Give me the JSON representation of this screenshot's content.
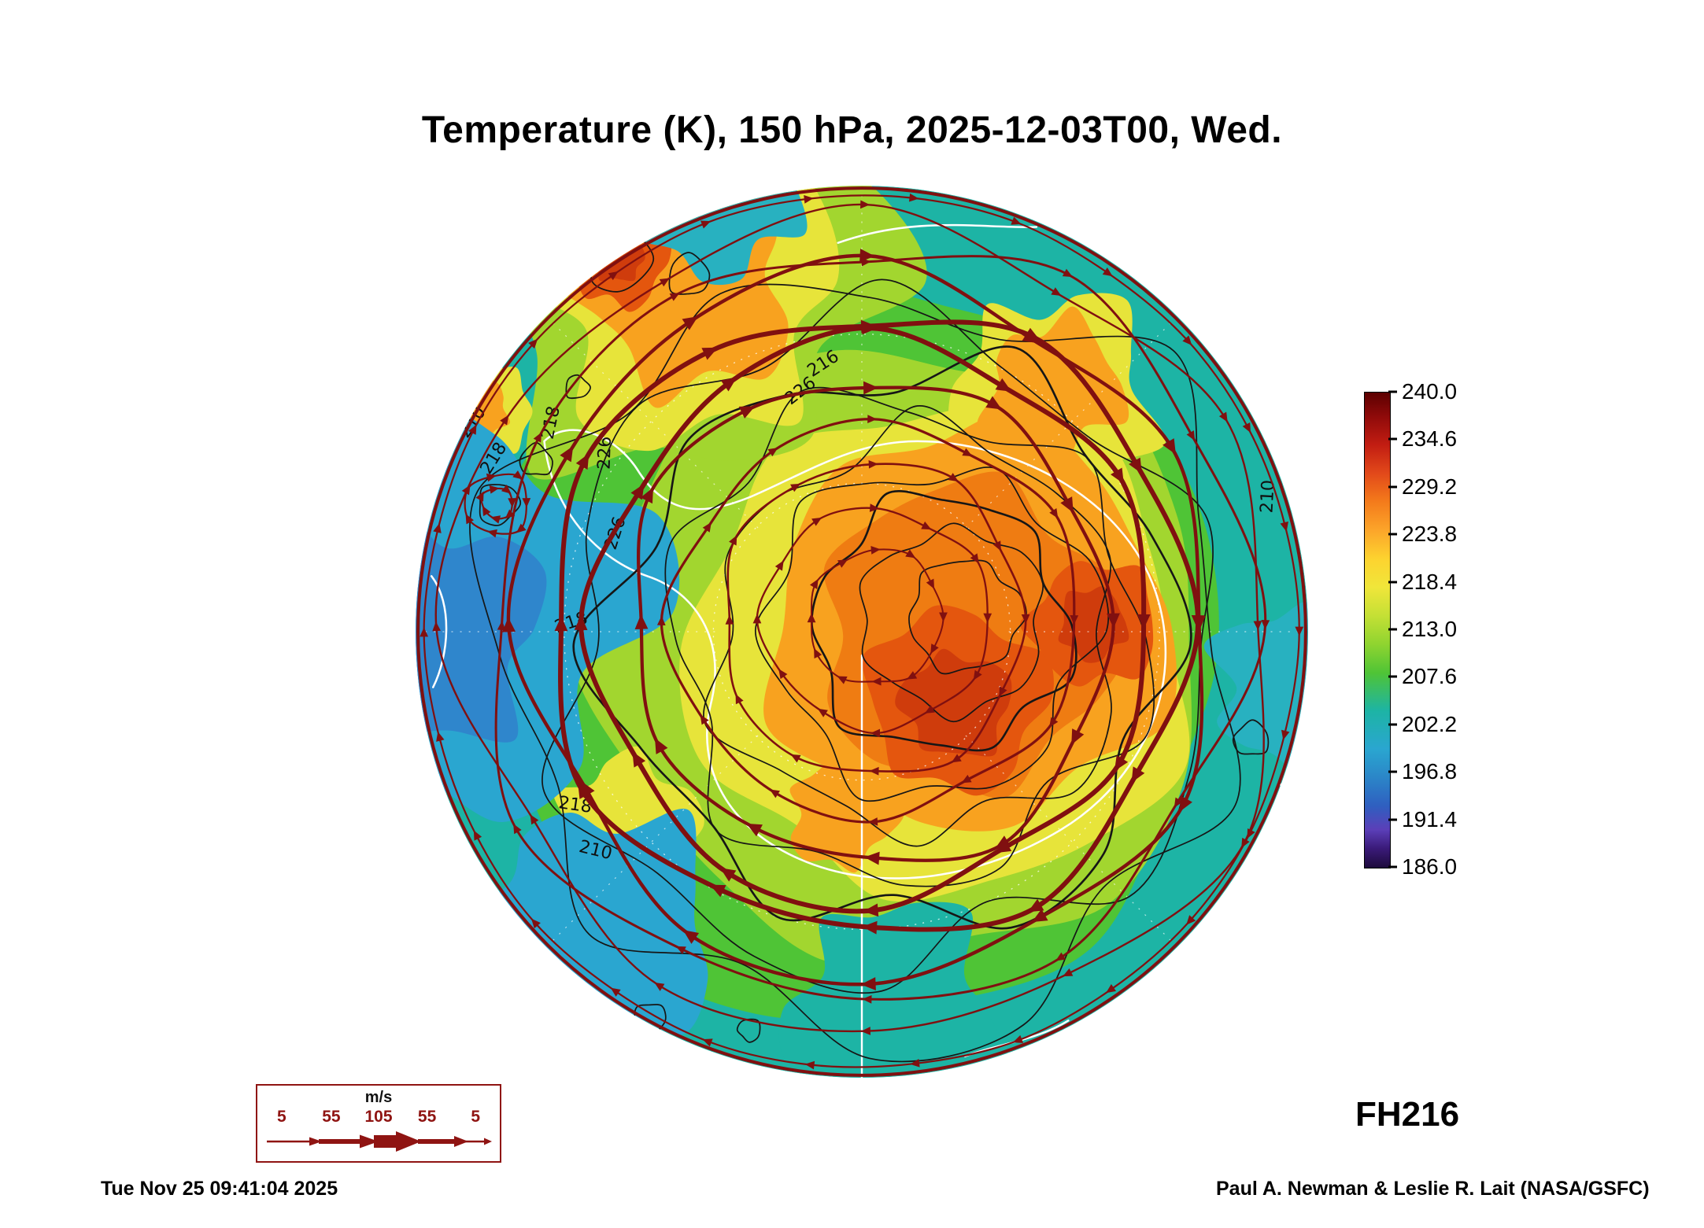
{
  "title": "Temperature (K), 150 hPa, 2025-12-03T00, Wed.",
  "colorbar": {
    "ticks": [
      "240.0",
      "234.6",
      "229.2",
      "223.8",
      "218.4",
      "213.0",
      "207.6",
      "202.2",
      "196.8",
      "191.4",
      "186.0"
    ]
  },
  "map": {
    "contour_labels": [
      "210",
      "218",
      "218",
      "226",
      "226",
      "226",
      "216",
      "210",
      "218",
      "218",
      "210"
    ]
  },
  "wind_legend": {
    "unit": "m/s",
    "values": [
      "5",
      "55",
      "105",
      "55",
      "5"
    ]
  },
  "forecast_label": "FH216",
  "footer": {
    "timestamp": "Tue Nov 25 09:41:04 2025",
    "credit": "Paul A. Newman & Leslie R. Lait (NASA/GSFC)"
  },
  "chart_data": {
    "type": "heatmap",
    "title": "Temperature (K), 150 hPa, 2025-12-03T00, Wed.",
    "variable": "Temperature",
    "units": "K",
    "level": "150 hPa",
    "valid_time": "2025-12-03T00",
    "valid_day": "Wed.",
    "forecast_hour": 216,
    "projection": "south polar stereographic (Antarctica)",
    "colorbar_ticks": [
      240.0,
      234.6,
      229.2,
      223.8,
      218.4,
      213.0,
      207.6,
      202.2,
      196.8,
      191.4,
      186.0
    ],
    "colorbar_range": [
      186.0,
      240.0
    ],
    "colorbar_colors_top_to_bottom": [
      "#5c0000",
      "#a01010",
      "#d23414",
      "#ef7c12",
      "#f8a21f",
      "#fdd32b",
      "#e7e43a",
      "#a2d62f",
      "#4fc436",
      "#1db4a5",
      "#2aa6d0",
      "#2f86cc",
      "#3b56c2",
      "#5b3fb8",
      "#321668"
    ],
    "contour_levels_labeled": [
      210,
      216,
      218,
      226
    ],
    "overlay": "horizontal wind streamlines with arrowheads, line thickness scaled by wind speed (m/s)",
    "wind_legend_speeds_ms": [
      5,
      55,
      105,
      55,
      5
    ],
    "field_description": "Cold (teal/cyan, ~200-210 K) ring around the disk edge; warm anticyclonic region (orange/red, ~226-235 K) over and east of the pole; circumpolar jet streamlines encircling Antarctica",
    "creation_time": "Tue Nov 25 09:41:04 2025",
    "credit": "Paul A. Newman & Leslie R. Lait (NASA/GSFC)"
  }
}
